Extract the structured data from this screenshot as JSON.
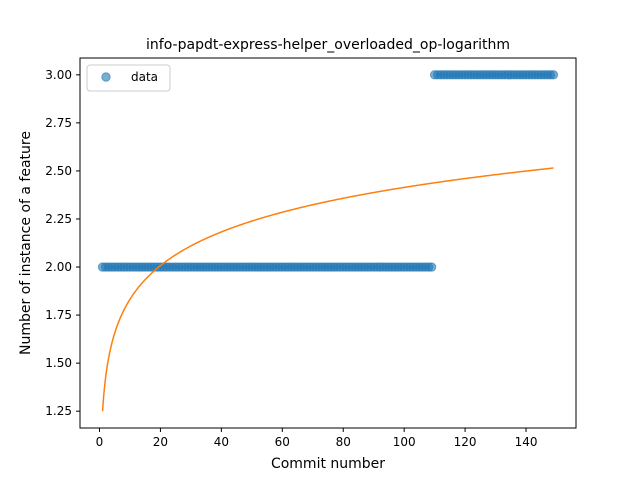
{
  "chart_data": {
    "type": "scatter",
    "title": "info-papdt-express-helper_overloaded_op-logarithm",
    "xlabel": "Commit number",
    "ylabel": "Number of instance of a feature",
    "xlim": [
      -6.4,
      156.4
    ],
    "ylim": [
      1.1625,
      3.0875
    ],
    "xticks": [
      0,
      20,
      40,
      60,
      80,
      100,
      120,
      140
    ],
    "yticks": [
      1.25,
      1.5,
      1.75,
      2.0,
      2.25,
      2.5,
      2.75,
      3.0
    ],
    "ytick_labels": [
      "1.25",
      "1.50",
      "1.75",
      "2.00",
      "2.25",
      "2.50",
      "2.75",
      "3.00"
    ],
    "grid": false,
    "legend_position": "upper left",
    "series": [
      {
        "name": "data",
        "kind": "scatter",
        "color": "#1f77b4",
        "segments": [
          {
            "x_from": 1,
            "x_to": 109,
            "y": 2
          },
          {
            "x_from": 110,
            "x_to": 149,
            "y": 3
          }
        ]
      },
      {
        "kind": "line",
        "color": "#ff7f0e",
        "fit": "logarithmic",
        "x_from": 1,
        "x_to": 149,
        "y_start": 1.25,
        "y_end": 2.515
      }
    ]
  }
}
